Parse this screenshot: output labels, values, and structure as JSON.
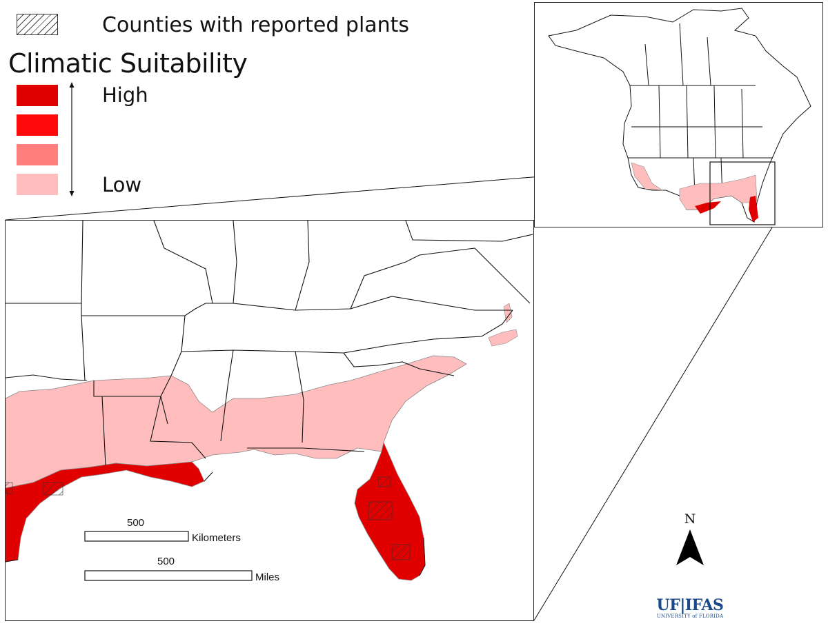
{
  "legend": {
    "hatch_label": "Counties with reported plants",
    "title": "Climatic Suitability",
    "high_label": "High",
    "low_label": "Low",
    "levels": [
      {
        "name": "level-1",
        "color": "#e00000"
      },
      {
        "name": "level-2",
        "color": "#ff0a0a"
      },
      {
        "name": "level-3",
        "color": "#ff7f7f"
      },
      {
        "name": "level-4",
        "color": "#ffbdbd"
      }
    ]
  },
  "scalebar": {
    "km_value": "500",
    "km_unit": "Kilometers",
    "mi_value": "500",
    "mi_unit": "Miles"
  },
  "north_arrow": {
    "label": "N"
  },
  "logo": {
    "main": "UF|IFAS",
    "sub": "UNIVERSITY of FLORIDA",
    "color": "#1a4a8c"
  },
  "colors": {
    "high": "#e00000",
    "low": "#ffbdbd",
    "border": "#111111"
  }
}
